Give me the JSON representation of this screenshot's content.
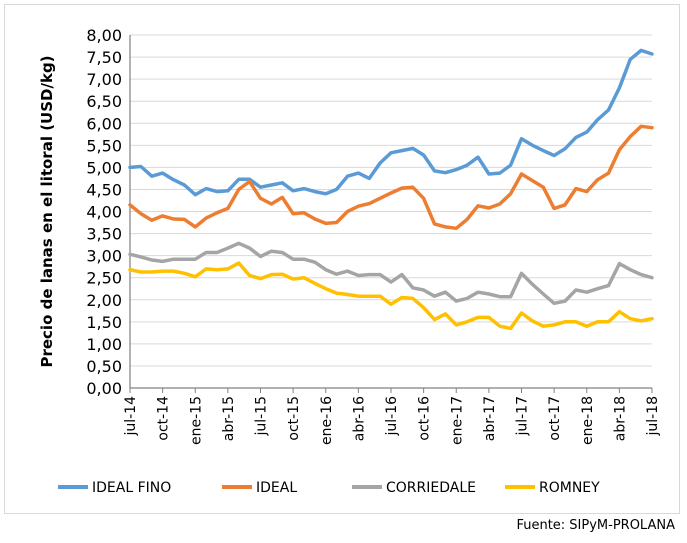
{
  "chart_data": {
    "type": "line",
    "title": "",
    "xlabel": "",
    "ylabel": "Precio de lanas en el litoral (USD/kg)",
    "ylim": [
      0,
      8
    ],
    "ytick_step": 0.5,
    "yticks": [
      "0,00",
      "0,50",
      "1,00",
      "1,50",
      "2,00",
      "2,50",
      "3,00",
      "3,50",
      "4,00",
      "4,50",
      "5,00",
      "5,50",
      "6,00",
      "6,50",
      "7,00",
      "7,50",
      "8,00"
    ],
    "grid": true,
    "legend_position": "bottom",
    "x_tick_labels": [
      "jul-14",
      "oct-14",
      "ene-15",
      "abr-15",
      "jul-15",
      "oct-15",
      "ene-16",
      "abr-16",
      "jul-16",
      "oct-16",
      "ene-17",
      "abr-17",
      "jul-17",
      "oct-17",
      "ene-18",
      "abr-18",
      "jul-18"
    ],
    "x_tick_every_months": 3,
    "x_count": 49,
    "series": [
      {
        "name": "IDEAL FINO",
        "color": "#5B9BD5",
        "values": [
          5.0,
          5.02,
          4.8,
          4.87,
          4.72,
          4.6,
          4.38,
          4.52,
          4.45,
          4.47,
          4.73,
          4.73,
          4.55,
          4.6,
          4.65,
          4.47,
          4.52,
          4.45,
          4.4,
          4.5,
          4.8,
          4.87,
          4.75,
          5.1,
          5.33,
          5.38,
          5.43,
          5.28,
          4.92,
          4.88,
          4.95,
          5.05,
          5.23,
          4.85,
          4.87,
          5.05,
          5.65,
          5.5,
          5.38,
          5.27,
          5.42,
          5.68,
          5.8,
          6.08,
          6.3,
          6.8,
          7.45,
          7.65,
          7.57
        ]
      },
      {
        "name": "IDEAL",
        "color": "#ED7D31",
        "values": [
          4.15,
          3.95,
          3.8,
          3.9,
          3.83,
          3.82,
          3.65,
          3.85,
          3.97,
          4.07,
          4.5,
          4.68,
          4.3,
          4.17,
          4.32,
          3.95,
          3.97,
          3.83,
          3.73,
          3.75,
          4.0,
          4.12,
          4.18,
          4.3,
          4.42,
          4.53,
          4.55,
          4.3,
          3.72,
          3.65,
          3.62,
          3.82,
          4.13,
          4.08,
          4.17,
          4.4,
          4.85,
          4.7,
          4.55,
          4.07,
          4.15,
          4.52,
          4.45,
          4.72,
          4.87,
          5.4,
          5.7,
          5.93,
          5.9
        ]
      },
      {
        "name": "CORRIEDALE",
        "color": "#A5A5A5",
        "values": [
          3.03,
          2.97,
          2.9,
          2.87,
          2.92,
          2.92,
          2.92,
          3.07,
          3.07,
          3.17,
          3.28,
          3.17,
          2.98,
          3.1,
          3.07,
          2.92,
          2.92,
          2.85,
          2.68,
          2.58,
          2.65,
          2.55,
          2.57,
          2.57,
          2.4,
          2.57,
          2.27,
          2.22,
          2.08,
          2.17,
          1.97,
          2.03,
          2.17,
          2.13,
          2.07,
          2.07,
          2.6,
          2.35,
          2.13,
          1.92,
          1.97,
          2.22,
          2.17,
          2.25,
          2.32,
          2.82,
          2.68,
          2.57,
          2.5
        ]
      },
      {
        "name": "ROMNEY",
        "color": "#FFC000",
        "values": [
          2.68,
          2.63,
          2.63,
          2.65,
          2.65,
          2.6,
          2.52,
          2.7,
          2.68,
          2.7,
          2.83,
          2.55,
          2.48,
          2.57,
          2.58,
          2.47,
          2.5,
          2.37,
          2.25,
          2.15,
          2.12,
          2.08,
          2.08,
          2.08,
          1.9,
          2.05,
          2.03,
          1.82,
          1.55,
          1.68,
          1.43,
          1.5,
          1.6,
          1.6,
          1.4,
          1.35,
          1.7,
          1.52,
          1.4,
          1.43,
          1.5,
          1.5,
          1.4,
          1.5,
          1.5,
          1.73,
          1.57,
          1.52,
          1.57
        ]
      }
    ]
  },
  "source": "Fuente: SIPyM-PROLANA"
}
